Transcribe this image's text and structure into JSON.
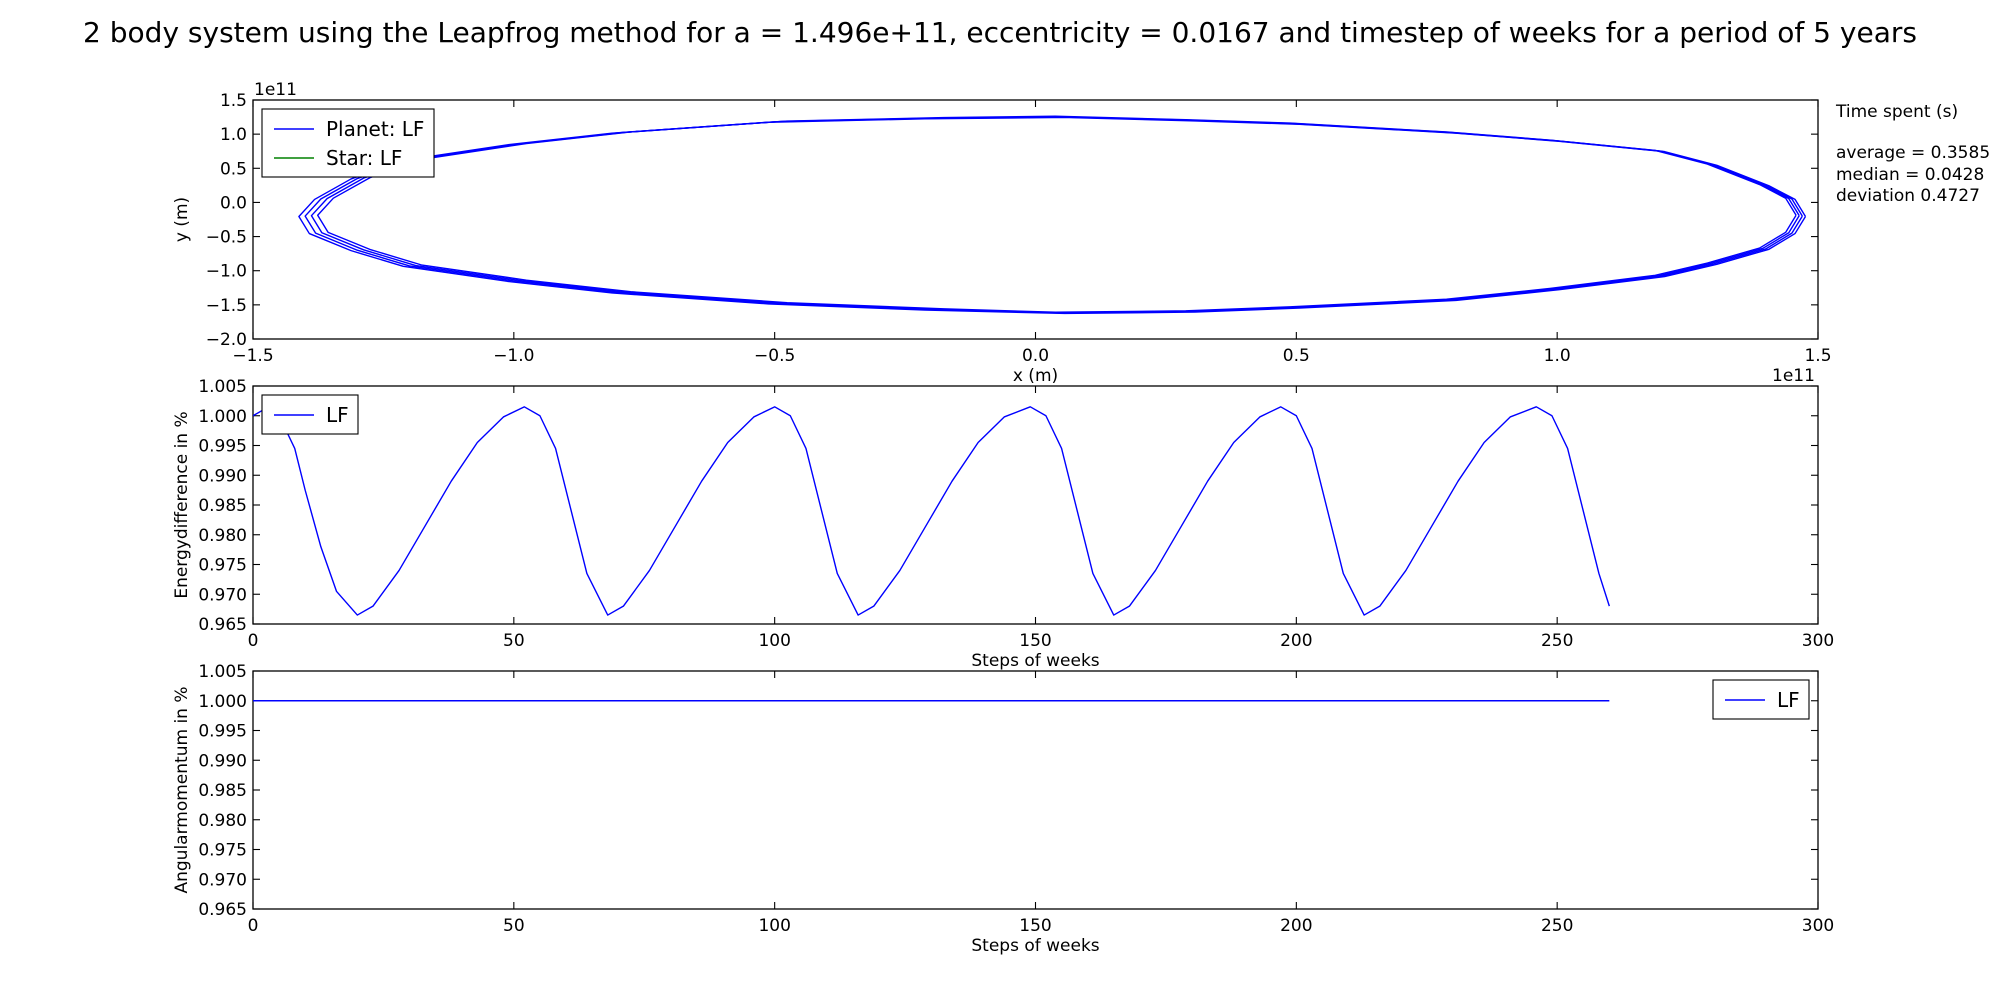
{
  "figure": {
    "title": "2 body system using the Leapfrog method for a = 1.496e+11, eccentricity = 0.0167 and timestep of weeks for a period of 5 years"
  },
  "time_box": {
    "heading": "Time spent (s)",
    "average": "average = 0.3585",
    "median": "median = 0.0428",
    "deviation": "deviation 0.4727"
  },
  "colors": {
    "planet": "#0000ff",
    "star": "#008000",
    "lf": "#0000ff"
  },
  "chart_data": [
    {
      "type": "line",
      "panel": "orbit",
      "xlabel": "x (m)",
      "ylabel": "y (m)",
      "x_offset_label": "1e11",
      "y_offset_label": "1e11",
      "xlim": [
        -1.5,
        1.5
      ],
      "ylim": [
        -2.0,
        1.5
      ],
      "xticks": [
        "−1.5",
        "−1.0",
        "−0.5",
        "0.0",
        "0.5",
        "1.0",
        "1.5"
      ],
      "yticks": [
        "1.5",
        "1.0",
        "0.5",
        "0.0",
        "−0.5",
        "−1.0",
        "−1.5",
        "−2.0"
      ],
      "legend_position": "upper left",
      "series": [
        {
          "name": "Planet: LF",
          "x": [
            1.47,
            1.45,
            1.4,
            1.3,
            1.2,
            1.0,
            0.8,
            0.5,
            0.3,
            0.05,
            -0.2,
            -0.5,
            -0.8,
            -1.0,
            -1.2,
            -1.3,
            -1.37,
            -1.4,
            -1.38,
            -1.3,
            -1.2,
            -1.0,
            -0.8,
            -0.5,
            -0.2,
            0.05,
            0.3,
            0.5,
            0.8,
            1.0,
            1.2,
            1.3,
            1.4,
            1.45,
            1.47
          ],
          "y": [
            -0.2,
            0.05,
            0.25,
            0.55,
            0.75,
            0.9,
            1.02,
            1.15,
            1.2,
            1.25,
            1.23,
            1.18,
            1.02,
            0.85,
            0.62,
            0.35,
            0.05,
            -0.2,
            -0.45,
            -0.7,
            -0.93,
            -1.15,
            -1.32,
            -1.48,
            -1.57,
            -1.62,
            -1.6,
            -1.54,
            -1.43,
            -1.27,
            -1.08,
            -0.9,
            -0.68,
            -0.45,
            -0.2
          ]
        },
        {
          "name": "Star: LF",
          "x": [
            0.0
          ],
          "y": [
            0.0
          ]
        }
      ]
    },
    {
      "type": "line",
      "panel": "energy",
      "xlabel": "Steps of weeks",
      "ylabel": "Energydifference in %",
      "xlim": [
        0,
        300
      ],
      "ylim": [
        0.965,
        1.005
      ],
      "xticks": [
        "0",
        "50",
        "100",
        "150",
        "200",
        "250",
        "300"
      ],
      "yticks": [
        "1.005",
        "1.000",
        "0.995",
        "0.990",
        "0.985",
        "0.980",
        "0.975",
        "0.970",
        "0.965"
      ],
      "legend_position": "upper left",
      "series": [
        {
          "name": "LF",
          "x": [
            0,
            3,
            5,
            8,
            10,
            13,
            16,
            20,
            23,
            28,
            33,
            38,
            43,
            48,
            52,
            55,
            58,
            61,
            64,
            68,
            71,
            76,
            81,
            86,
            91,
            96,
            100,
            103,
            106,
            109,
            112,
            116,
            119,
            124,
            129,
            134,
            139,
            144,
            149,
            152,
            155,
            158,
            161,
            165,
            168,
            173,
            178,
            183,
            188,
            193,
            197,
            200,
            203,
            206,
            209,
            213,
            216,
            221,
            226,
            231,
            236,
            241,
            246,
            249,
            252,
            255,
            258,
            260
          ],
          "y": [
            1.0,
            1.0015,
            1.0,
            0.9945,
            0.9875,
            0.978,
            0.9705,
            0.9665,
            0.968,
            0.974,
            0.9815,
            0.989,
            0.9955,
            0.9998,
            1.0015,
            1.0,
            0.9945,
            0.984,
            0.9735,
            0.9665,
            0.968,
            0.974,
            0.9815,
            0.989,
            0.9955,
            0.9998,
            1.0015,
            1.0,
            0.9945,
            0.984,
            0.9735,
            0.9665,
            0.968,
            0.974,
            0.9815,
            0.989,
            0.9955,
            0.9998,
            1.0015,
            1.0,
            0.9945,
            0.984,
            0.9735,
            0.9665,
            0.968,
            0.974,
            0.9815,
            0.989,
            0.9955,
            0.9998,
            1.0015,
            1.0,
            0.9945,
            0.984,
            0.9735,
            0.9665,
            0.968,
            0.974,
            0.9815,
            0.989,
            0.9955,
            0.9998,
            1.0015,
            1.0,
            0.9945,
            0.984,
            0.9735,
            0.968
          ]
        }
      ]
    },
    {
      "type": "line",
      "panel": "angular",
      "xlabel": "Steps of weeks",
      "ylabel": "Angularmomentum in  %",
      "xlim": [
        0,
        300
      ],
      "ylim": [
        0.965,
        1.005
      ],
      "xticks": [
        "0",
        "50",
        "100",
        "150",
        "200",
        "250",
        "300"
      ],
      "yticks": [
        "1.005",
        "1.000",
        "0.995",
        "0.990",
        "0.985",
        "0.980",
        "0.975",
        "0.970",
        "0.965"
      ],
      "legend_position": "upper right",
      "series": [
        {
          "name": "LF",
          "x": [
            0,
            260
          ],
          "y": [
            1.0,
            1.0
          ]
        }
      ]
    }
  ]
}
